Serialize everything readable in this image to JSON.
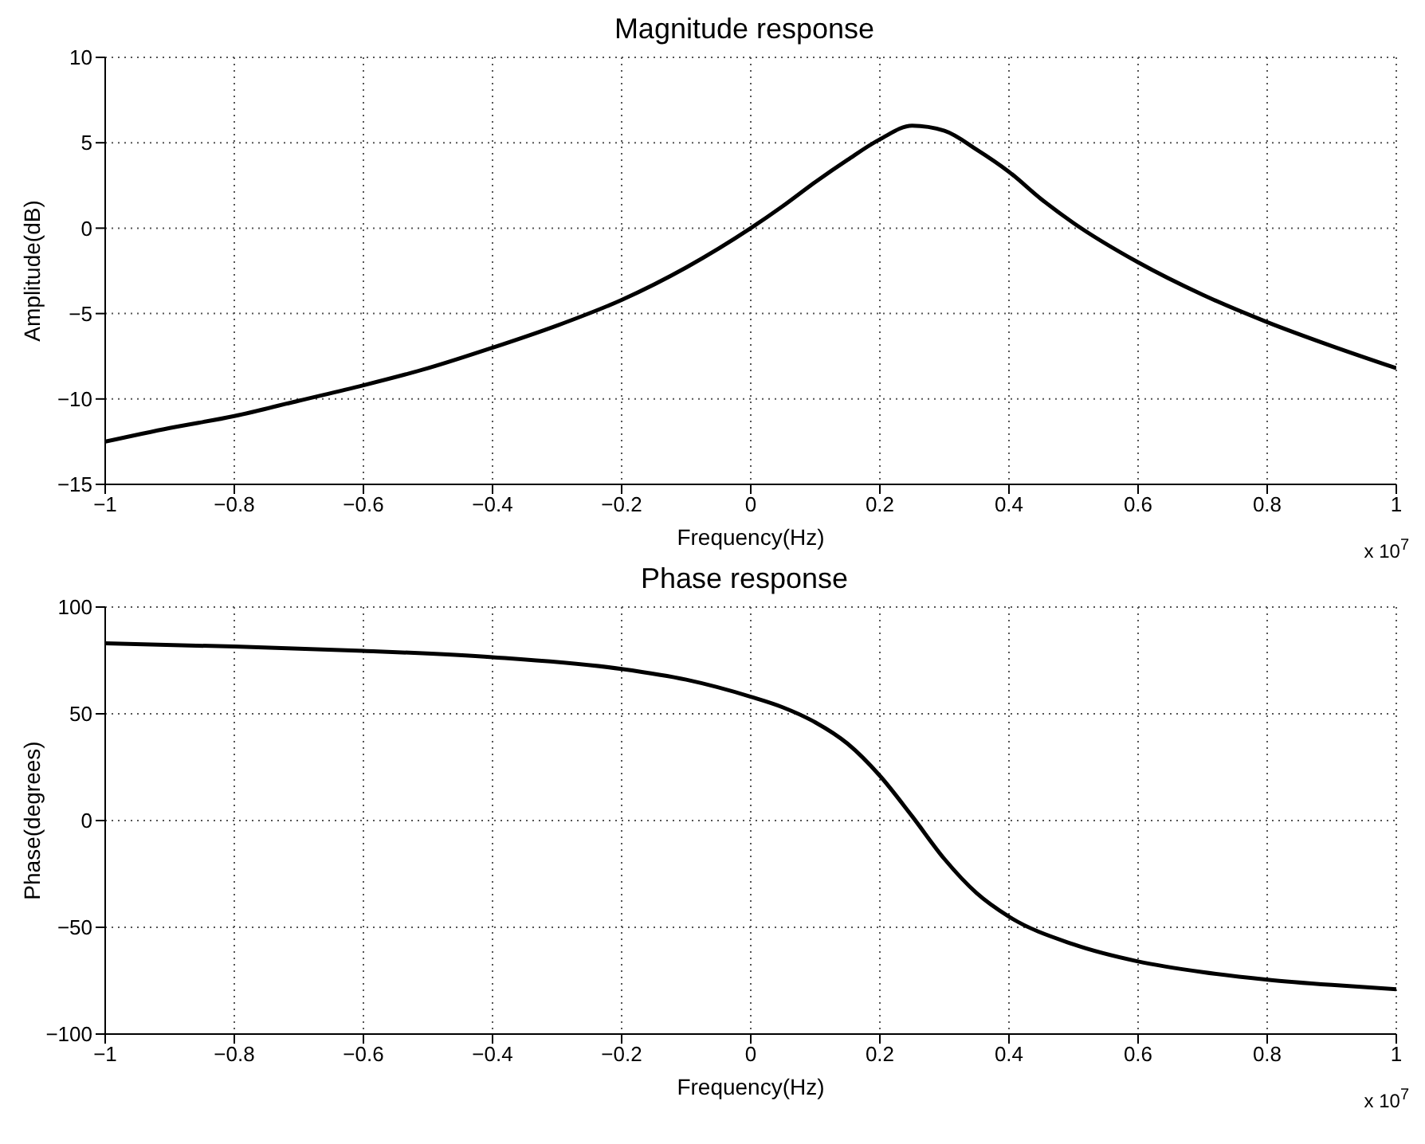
{
  "chart_data": [
    {
      "type": "line",
      "title": "Magnitude response",
      "xlabel": "Frequency(Hz)",
      "ylabel": "Amplitude(dB)",
      "annotations": [
        "x 10$^{7}$"
      ],
      "x": [
        -1,
        -0.9,
        -0.8,
        -0.7,
        -0.6,
        -0.5,
        -0.4,
        -0.3,
        -0.2,
        -0.1,
        0,
        0.05,
        0.1,
        0.15,
        0.2,
        0.25,
        0.3,
        0.35,
        0.4,
        0.45,
        0.5,
        0.6,
        0.7,
        0.8,
        0.9,
        1
      ],
      "series": [
        {
          "color": "#000000",
          "values": [
            -12.5,
            -11.7,
            -11,
            -10.1,
            -9.2,
            -8.2,
            -7,
            -5.7,
            -4.2,
            -2.3,
            0,
            1.3,
            2.7,
            4,
            5.2,
            6,
            5.7,
            4.6,
            3.3,
            1.7,
            0.3,
            -2,
            -3.9,
            -5.5,
            -6.9,
            -8.2
          ]
        }
      ],
      "xlim": [
        -1,
        1
      ],
      "xticks": [
        -1,
        -0.8,
        -0.6,
        -0.4,
        -0.2,
        0,
        0.2,
        0.4,
        0.6,
        0.8,
        1
      ],
      "ylim": [
        -15,
        10
      ],
      "yticks": [
        -15,
        -10,
        -5,
        0,
        5,
        10
      ],
      "grid": true,
      "marker": "none",
      "line_style": "solid"
    },
    {
      "type": "line",
      "title": "Phase response",
      "xlabel": "Frequency(Hz)",
      "ylabel": "Phase(degrees)",
      "annotations": [
        "x 10$^{7}$"
      ],
      "x": [
        -1,
        -0.8,
        -0.6,
        -0.4,
        -0.2,
        -0.1,
        0,
        0.05,
        0.1,
        0.15,
        0.2,
        0.25,
        0.3,
        0.35,
        0.4,
        0.5,
        0.6,
        0.7,
        0.8,
        0.9,
        1
      ],
      "series": [
        {
          "color": "#000000",
          "values": [
            83,
            81.5,
            79.5,
            76.5,
            71,
            66,
            58,
            53,
            46,
            36,
            21,
            2,
            -18,
            -34,
            -45,
            -58,
            -66,
            -71,
            -74.5,
            -77,
            -79
          ]
        }
      ],
      "xlim": [
        -1,
        1
      ],
      "xticks": [
        -1,
        -0.8,
        -0.6,
        -0.4,
        -0.2,
        0,
        0.2,
        0.4,
        0.6,
        0.8,
        1
      ],
      "ylim": [
        -100,
        100
      ],
      "yticks": [
        -100,
        -50,
        0,
        50,
        100
      ],
      "grid": true,
      "marker": "none",
      "line_style": "solid"
    }
  ]
}
